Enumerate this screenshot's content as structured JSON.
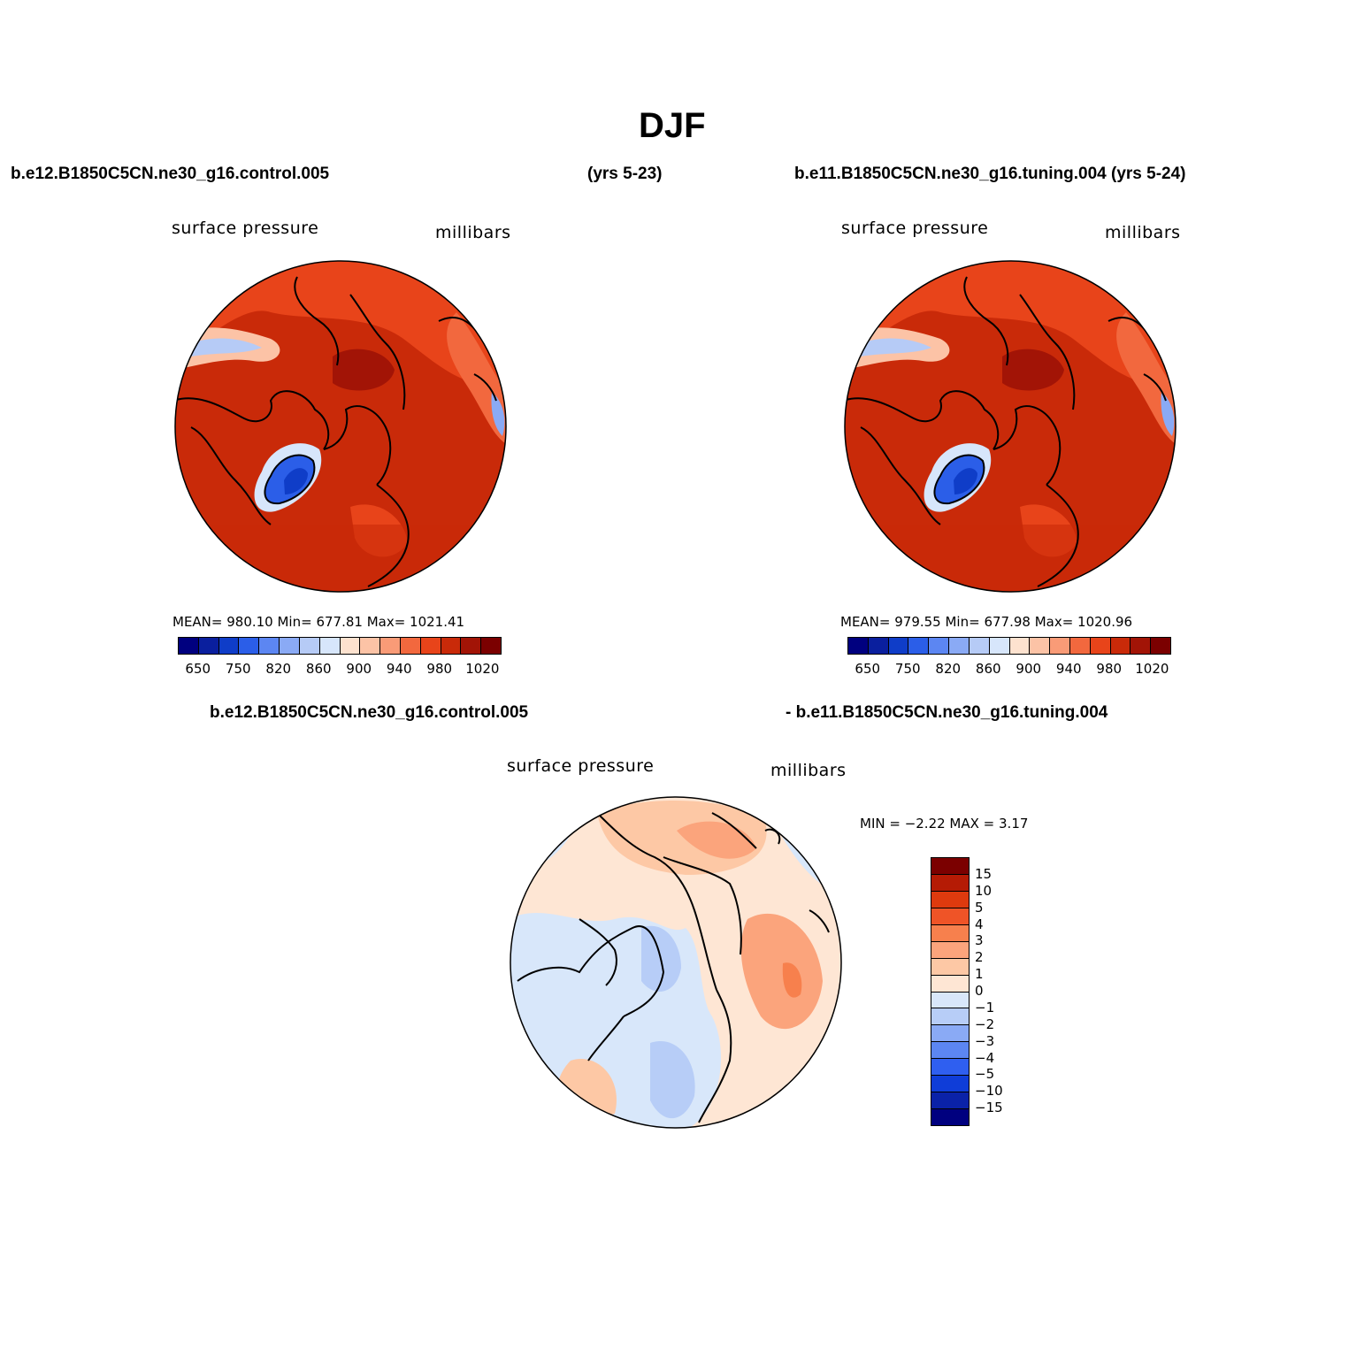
{
  "title": "DJF",
  "panels": {
    "left": {
      "case_title": "b.e12.B1850C5CN.ne30_g16.control.005",
      "years": "(yrs 5-23)",
      "variable": "surface pressure",
      "units": "millibars",
      "stats": "MEAN= 980.10   Min= 677.81   Max= 1021.41"
    },
    "right": {
      "case_title": "b.e11.B1850C5CN.ne30_g16.tuning.004 (yrs 5-24)",
      "variable": "surface pressure",
      "units": "millibars",
      "stats": "MEAN= 979.55   Min= 677.98   Max= 1020.96"
    },
    "diff": {
      "case_a": "b.e12.B1850C5CN.ne30_g16.control.005",
      "case_b": "- b.e11.B1850C5CN.ne30_g16.tuning.004",
      "variable": "surface pressure",
      "units": "millibars",
      "stats": "MIN =   −2.22 MAX =    3.17"
    }
  },
  "colorbar_main": {
    "colors": [
      "#00007f",
      "#0a1f9e",
      "#0f3dc8",
      "#2b5ee8",
      "#5c86f2",
      "#8aaaf5",
      "#b6cbf6",
      "#d7e6fb",
      "#fde2cf",
      "#fcc3a6",
      "#f99b77",
      "#f2683e",
      "#e8441a",
      "#c92a09",
      "#a21406",
      "#7b0000"
    ],
    "labels": [
      "650",
      "750",
      "820",
      "860",
      "900",
      "940",
      "980",
      "1020"
    ]
  },
  "colorbar_diff": {
    "colors": [
      "#7b0000",
      "#b51b05",
      "#de3a0e",
      "#ef5427",
      "#f7804d",
      "#fba47c",
      "#fdc8a5",
      "#fee6d4",
      "#d8e7fa",
      "#b7cdf7",
      "#8aaaf5",
      "#5c86f2",
      "#2f5ff0",
      "#0f3dd8",
      "#0a22a8",
      "#00007f"
    ],
    "labels": [
      "15",
      "10",
      "5",
      "4",
      "3",
      "2",
      "1",
      "0",
      "−1",
      "−2",
      "−3",
      "−4",
      "−5",
      "−10",
      "−15"
    ]
  },
  "map_fields": {
    "surface_pressure": {
      "background": "#c92a09",
      "regions": [
        {
          "name": "pacific-low",
          "color": "#e8441a"
        },
        {
          "name": "siberian-high",
          "color": "#a21406"
        },
        {
          "name": "greenland-low",
          "color": "#0f3dc8"
        },
        {
          "name": "tibet-low",
          "color": "#b6cbf6"
        },
        {
          "name": "rockies",
          "color": "#fcc3a6"
        }
      ]
    },
    "difference": {
      "background": "#fee6d4",
      "regions": [
        {
          "name": "negative",
          "color": "#d8e7fa"
        },
        {
          "name": "strong-negative",
          "color": "#b7cdf7"
        },
        {
          "name": "positive",
          "color": "#fba47c"
        }
      ]
    }
  }
}
